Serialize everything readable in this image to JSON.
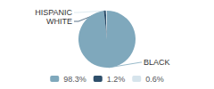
{
  "chart_data": {
    "type": "pie",
    "categories": [
      "BLACK",
      "WHITE",
      "HISPANIC"
    ],
    "values": [
      98.3,
      1.2,
      0.6
    ],
    "value_labels": [
      "98.3%",
      "1.2%",
      "0.6%"
    ],
    "colors": [
      "#7fa8bc",
      "#2e4f6b",
      "#d6e4ec"
    ],
    "legend": "bottom"
  }
}
